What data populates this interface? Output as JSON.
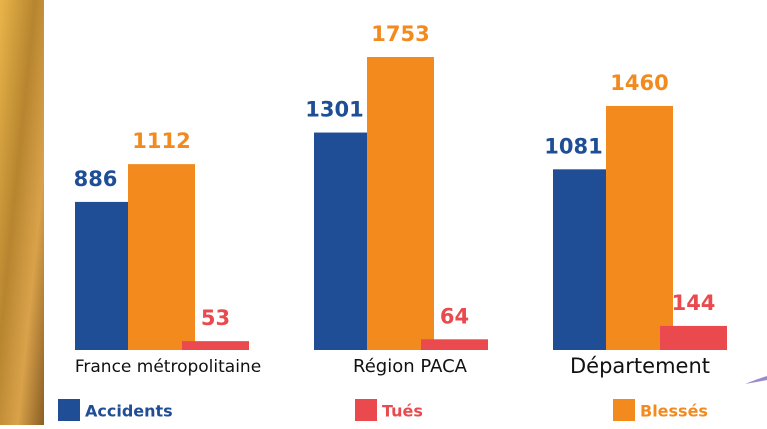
{
  "chart_data": {
    "type": "bar",
    "categories": [
      "France métropolitaine",
      "Région PACA",
      "Département"
    ],
    "series": [
      {
        "name": "Accidents",
        "color": "#1f4e96",
        "values": [
          886,
          1301,
          1081
        ]
      },
      {
        "name": "Blessés",
        "color": "#f28a1e",
        "values": [
          1112,
          1753,
          1460
        ]
      },
      {
        "name": "Tués",
        "color": "#ea4a4d",
        "values": [
          53,
          64,
          144
        ]
      }
    ]
  }
}
